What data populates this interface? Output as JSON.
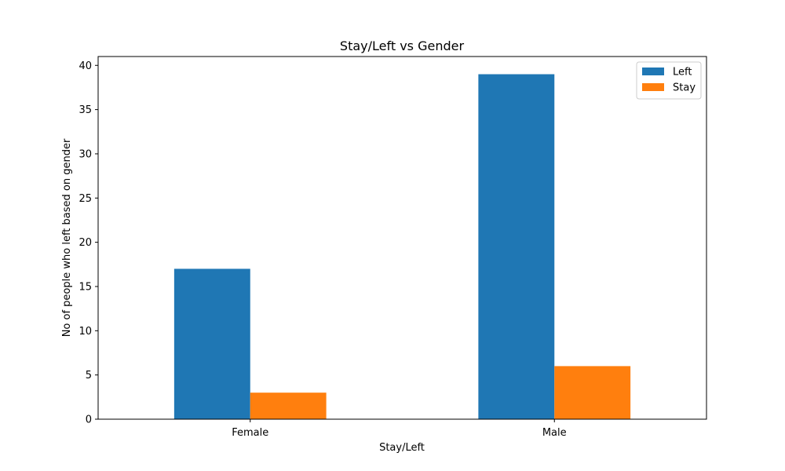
{
  "chart_data": {
    "type": "bar",
    "title": "Stay/Left vs Gender",
    "xlabel": "Stay/Left",
    "ylabel": "No of people who left based on gender",
    "categories": [
      "Female",
      "Male"
    ],
    "series": [
      {
        "name": "Left",
        "values": [
          17,
          39
        ],
        "color": "#1f77b4"
      },
      {
        "name": "Stay",
        "values": [
          3,
          6
        ],
        "color": "#ff7f0e"
      }
    ],
    "ylim": [
      0,
      41
    ],
    "yticks": [
      0,
      5,
      10,
      15,
      20,
      25,
      30,
      35,
      40
    ],
    "grid": false,
    "legend_position": "top-right"
  }
}
